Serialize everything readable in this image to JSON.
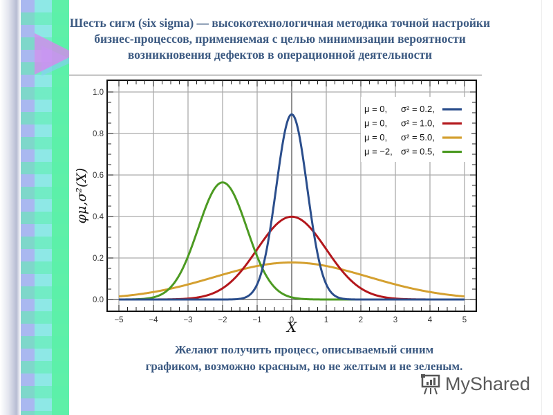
{
  "slide": {
    "title_lines": [
      "Шесть сигм (six sigma) — высокотехнологичная методика точной настройки",
      "бизнес-процессов, применяемая с целью минимизации вероятности",
      "возникновения дефектов в операционной деятельности"
    ],
    "caption_lines": [
      "Желают получить процесс, описываемый синим",
      "графиком, возможно красным, но не желтым и не зеленым."
    ],
    "watermark": {
      "icon": "presentation-board-icon",
      "text": "MyShared"
    },
    "decor": {
      "left_strip": "mosaic-gradient",
      "triangle_color": "#dc82f0"
    }
  },
  "chart_data": {
    "type": "line",
    "title": "",
    "xlabel": "X",
    "ylabel": "φμ,σ²(X)",
    "xlim": [
      -5,
      5
    ],
    "ylim": [
      0,
      1.0
    ],
    "x_ticks": [
      "−5",
      "−4",
      "−3",
      "−2",
      "−1",
      "0",
      "1",
      "2",
      "3",
      "4",
      "5"
    ],
    "y_ticks": [
      "0.0",
      "0.2",
      "0.4",
      "0.6",
      "0.8",
      "1.0"
    ],
    "grid": true,
    "legend_position": "upper right",
    "series": [
      {
        "name": "μ = 0, σ² = 0.2",
        "mu_label": "μ = 0,",
        "sigma_label": "σ² = 0.2,",
        "mu": 0,
        "variance": 0.2,
        "peak": 0.89,
        "color": "#2b4e8c"
      },
      {
        "name": "μ = 0, σ² = 1.0",
        "mu_label": "μ = 0,",
        "sigma_label": "σ² = 1.0,",
        "mu": 0,
        "variance": 1.0,
        "peak": 0.4,
        "color": "#b3171c"
      },
      {
        "name": "μ = 0, σ² = 5.0",
        "mu_label": "μ = 0,",
        "sigma_label": "σ² = 5.0,",
        "mu": 0,
        "variance": 5.0,
        "peak": 0.18,
        "color": "#d4a030"
      },
      {
        "name": "μ = −2, σ² = 0.5",
        "mu_label": "μ = −2,",
        "sigma_label": "σ² = 0.5,",
        "mu": -2,
        "variance": 0.5,
        "peak": 0.56,
        "color": "#4c9a22"
      }
    ]
  }
}
